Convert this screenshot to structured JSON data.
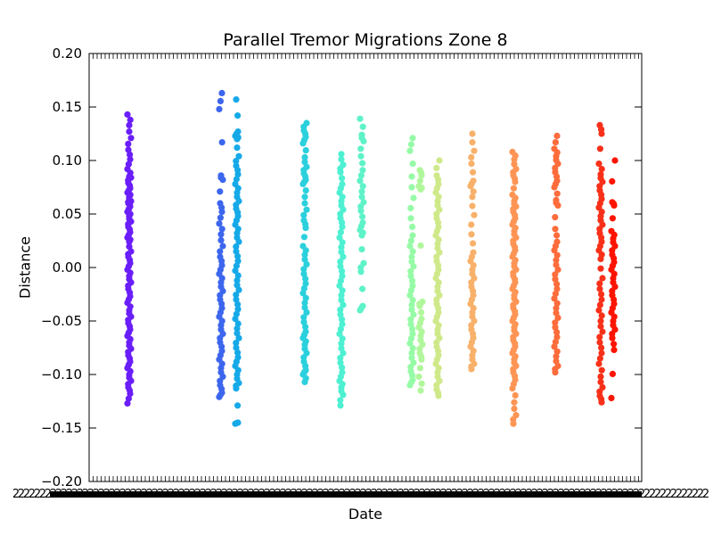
{
  "chart_data": {
    "type": "scatter",
    "title": "Parallel Tremor Migrations Zone 8",
    "xlabel": "Date",
    "ylabel": "Distance",
    "ylim": [
      -0.2,
      0.2
    ],
    "y_ticks": [
      "0.20",
      "0.15",
      "0.10",
      "0.05",
      "0.00",
      "−0.05",
      "−0.10",
      "−0.15",
      "−0.20"
    ],
    "x_tick_labels": "dense overlapping date labels (illegible)",
    "grid": false,
    "legend": "none",
    "series": [
      {
        "color": "#6a1ef9",
        "x_index": 1,
        "values": [
          0.143,
          0.133,
          0.121,
          0.11,
          0.101,
          0.092,
          0.085,
          0.084,
          0.079,
          0.074,
          0.07,
          0.066,
          0.062,
          0.06,
          0.057,
          0.052,
          0.048,
          0.043,
          0.038,
          0.033,
          0.028,
          0.024,
          0.015,
          0.01,
          0.004,
          -0.002,
          -0.008,
          -0.014,
          -0.02,
          -0.027,
          -0.033,
          -0.04,
          -0.046,
          -0.052,
          -0.058,
          -0.064,
          -0.07,
          -0.076,
          -0.082,
          -0.088,
          -0.094,
          -0.1,
          -0.106,
          -0.112,
          -0.118,
          -0.127
        ]
      },
      {
        "color": "#3d66ee",
        "x_index": 2,
        "values": [
          0.163,
          0.148,
          0.086,
          0.082,
          0.06,
          0.052,
          0.041,
          0.031,
          0.02,
          0.01,
          0.002,
          -0.006,
          -0.014,
          -0.022,
          -0.03,
          -0.038,
          -0.046,
          -0.054,
          -0.062,
          -0.07,
          -0.078,
          -0.086,
          -0.094,
          -0.102,
          -0.11,
          -0.117,
          -0.121
        ]
      },
      {
        "color": "#16a9e8",
        "x_index": 3,
        "values": [
          0.157,
          0.127,
          0.123,
          0.12,
          0.104,
          0.095,
          0.087,
          0.078,
          0.07,
          0.062,
          0.055,
          0.048,
          0.04,
          0.032,
          0.024,
          0.015,
          0.006,
          -0.003,
          -0.012,
          -0.021,
          -0.03,
          -0.039,
          -0.048,
          -0.057,
          -0.066,
          -0.075,
          -0.084,
          -0.092,
          -0.1,
          -0.108,
          -0.113,
          -0.145,
          -0.146
        ]
      },
      {
        "color": "#2bd0dd",
        "x_index": 4,
        "values": [
          0.135,
          0.128,
          0.122,
          0.116,
          0.103,
          0.094,
          0.088,
          0.082,
          0.078,
          0.066,
          0.054,
          0.044,
          0.037,
          0.02,
          0.012,
          0.003,
          -0.006,
          -0.015,
          -0.024,
          -0.033,
          -0.042,
          -0.051,
          -0.06,
          -0.066,
          -0.072,
          -0.08,
          -0.088,
          -0.096,
          -0.1,
          -0.107
        ]
      },
      {
        "color": "#4ef0d2",
        "x_index": 5,
        "values": [
          0.106,
          0.096,
          0.089,
          0.078,
          0.07,
          0.062,
          0.054,
          0.046,
          0.038,
          0.028,
          0.019,
          0.01,
          0.001,
          -0.008,
          -0.017,
          -0.026,
          -0.035,
          -0.044,
          -0.053,
          -0.062,
          -0.071,
          -0.08,
          -0.089,
          -0.098,
          -0.106,
          -0.112,
          -0.119,
          -0.129
        ]
      },
      {
        "color": "#5ef2c8",
        "x_index": 6,
        "values": [
          0.139,
          0.124,
          0.118,
          0.104,
          0.091,
          0.081,
          0.071,
          0.061,
          0.053,
          0.042,
          0.035,
          0.03,
          0.004,
          -0.004,
          -0.036,
          -0.04
        ]
      },
      {
        "color": "#96fba6",
        "x_index": 7,
        "values": [
          0.121,
          0.109,
          0.085,
          0.065,
          0.046,
          0.03,
          0.02,
          0.01,
          0.001,
          -0.008,
          -0.017,
          -0.026,
          -0.035,
          -0.044,
          -0.053,
          -0.062,
          -0.071,
          -0.08,
          -0.089,
          -0.097,
          -0.105,
          -0.11
        ]
      },
      {
        "color": "#b0f79c",
        "x_index": 8,
        "values": [
          0.091,
          0.086,
          0.076,
          0.073,
          -0.032,
          -0.036,
          -0.048,
          -0.056,
          -0.064,
          -0.072,
          -0.08,
          -0.086,
          -0.102,
          -0.115
        ]
      },
      {
        "color": "#cfe98a",
        "x_index": 9,
        "values": [
          0.1,
          0.086,
          0.078,
          0.07,
          0.062,
          0.054,
          0.046,
          0.038,
          0.03,
          0.022,
          0.014,
          0.006,
          -0.002,
          -0.01,
          -0.018,
          -0.026,
          -0.034,
          -0.042,
          -0.05,
          -0.058,
          -0.066,
          -0.074,
          -0.082,
          -0.09,
          -0.098,
          -0.106,
          -0.114,
          -0.12
        ]
      },
      {
        "color": "#f8b16a",
        "x_index": 10,
        "values": [
          0.125,
          0.109,
          0.097,
          0.081,
          0.076,
          0.066,
          0.049,
          0.031,
          0.014,
          0.006,
          -0.002,
          -0.01,
          -0.018,
          -0.026,
          -0.034,
          -0.042,
          -0.05,
          -0.058,
          -0.066,
          -0.074,
          -0.082,
          -0.09,
          -0.095
        ]
      },
      {
        "color": "#fe9555",
        "x_index": 11,
        "values": [
          0.108,
          0.101,
          0.092,
          0.086,
          0.08,
          0.068,
          0.062,
          0.057,
          0.052,
          0.046,
          0.04,
          0.034,
          0.028,
          0.022,
          0.016,
          0.01,
          0.004,
          -0.002,
          -0.008,
          -0.014,
          -0.02,
          -0.026,
          -0.032,
          -0.038,
          -0.044,
          -0.05,
          -0.056,
          -0.062,
          -0.068,
          -0.074,
          -0.08,
          -0.086,
          -0.092,
          -0.098,
          -0.105,
          -0.113,
          -0.126,
          -0.138,
          -0.146
        ]
      },
      {
        "color": "#fd6c3b",
        "x_index": 12,
        "values": [
          0.123,
          0.111,
          0.104,
          0.097,
          0.089,
          0.081,
          0.075,
          0.063,
          0.058,
          0.036,
          0.024,
          0.016,
          0.007,
          -0.002,
          -0.011,
          -0.02,
          -0.029,
          -0.038,
          -0.047,
          -0.056,
          -0.065,
          -0.074,
          -0.083,
          -0.092,
          -0.098
        ]
      },
      {
        "color": "#f93019",
        "x_index": 13,
        "values": [
          0.133,
          0.125,
          0.097,
          0.087,
          0.08,
          0.072,
          0.064,
          0.056,
          0.048,
          0.04,
          0.032,
          0.024,
          0.016,
          0.008,
          -0.01,
          -0.02,
          -0.03,
          -0.04,
          -0.05,
          -0.06,
          -0.07,
          -0.08,
          -0.09,
          -0.102,
          -0.112,
          -0.12,
          -0.126
        ]
      },
      {
        "color": "#fd1400",
        "x_index": 14,
        "values": [
          0.1,
          0.061,
          0.058,
          0.034,
          0.027,
          0.02,
          0.012,
          0.005,
          -0.002,
          -0.01,
          -0.018,
          -0.026,
          -0.034,
          -0.042,
          -0.05,
          -0.058,
          -0.066,
          -0.077,
          -0.122
        ]
      }
    ]
  }
}
